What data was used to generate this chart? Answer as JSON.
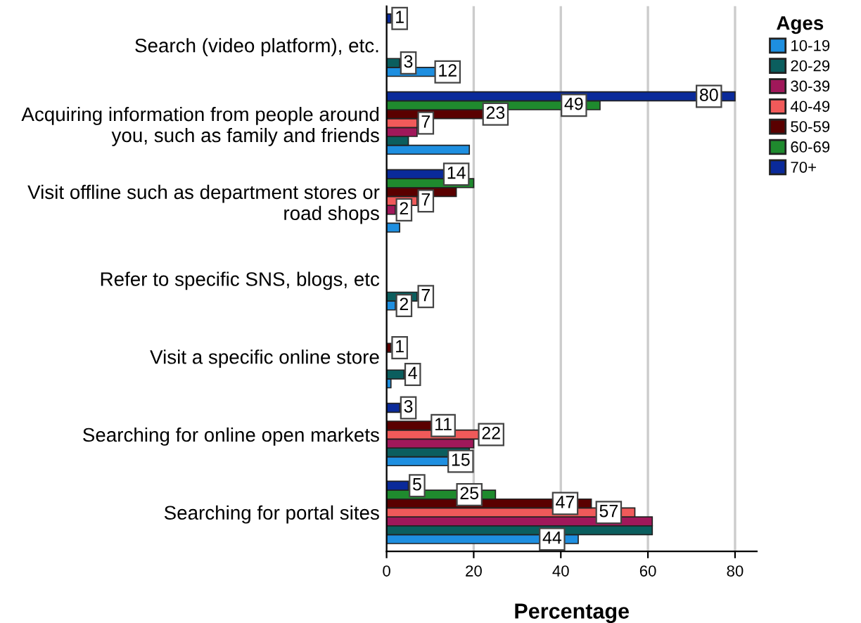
{
  "chart_data": {
    "type": "bar",
    "orientation": "horizontal",
    "xlabel": "Percentage",
    "legend_title": "Ages",
    "legend": "right",
    "grid": "x",
    "categories": [
      "Search (video platform), etc.",
      "Acquiring information from people around\nyou, such as family and friends",
      "Visit offline such as department stores or\nroad shops",
      "Refer to specific SNS, blogs, etc",
      "Visit a specific online store",
      "Searching for online open markets",
      "Searching for portal sites"
    ],
    "xlim": [
      0,
      85
    ],
    "xticks": [
      0,
      20,
      40,
      60,
      80
    ],
    "series": [
      {
        "name": "10-19",
        "color": "#1e8fe0",
        "values": [
          12,
          19,
          3,
          2,
          1,
          15,
          44
        ],
        "value_labels": [
          "12",
          null,
          null,
          "2",
          null,
          "15",
          "44"
        ]
      },
      {
        "name": "20-29",
        "color": "#0b5e5e",
        "values": [
          3,
          5,
          null,
          7,
          4,
          19,
          61
        ],
        "value_labels": [
          "3",
          null,
          null,
          "7",
          "4",
          null,
          null
        ]
      },
      {
        "name": "30-39",
        "color": "#a0185a",
        "values": [
          null,
          7,
          2,
          null,
          null,
          20,
          61
        ],
        "value_labels": [
          null,
          null,
          "2",
          null,
          null,
          null,
          null
        ]
      },
      {
        "name": "40-49",
        "color": "#f05a5a",
        "values": [
          null,
          7,
          7,
          null,
          null,
          22,
          57
        ],
        "value_labels": [
          null,
          "7",
          "7",
          null,
          null,
          "22",
          "57"
        ]
      },
      {
        "name": "50-59",
        "color": "#5a0000",
        "values": [
          null,
          23,
          16,
          null,
          1,
          11,
          47
        ],
        "value_labels": [
          null,
          "23",
          null,
          null,
          "1",
          "11",
          "47"
        ]
      },
      {
        "name": "60-69",
        "color": "#1f8a2e",
        "values": [
          null,
          49,
          20,
          null,
          null,
          null,
          25
        ],
        "value_labels": [
          null,
          "49",
          null,
          null,
          null,
          null,
          "25"
        ]
      },
      {
        "name": "70+",
        "color": "#0a2a9a",
        "values": [
          1,
          80,
          14,
          null,
          null,
          3,
          5
        ],
        "value_labels": [
          "1",
          "80",
          "14",
          null,
          null,
          "3",
          "5"
        ]
      }
    ]
  }
}
